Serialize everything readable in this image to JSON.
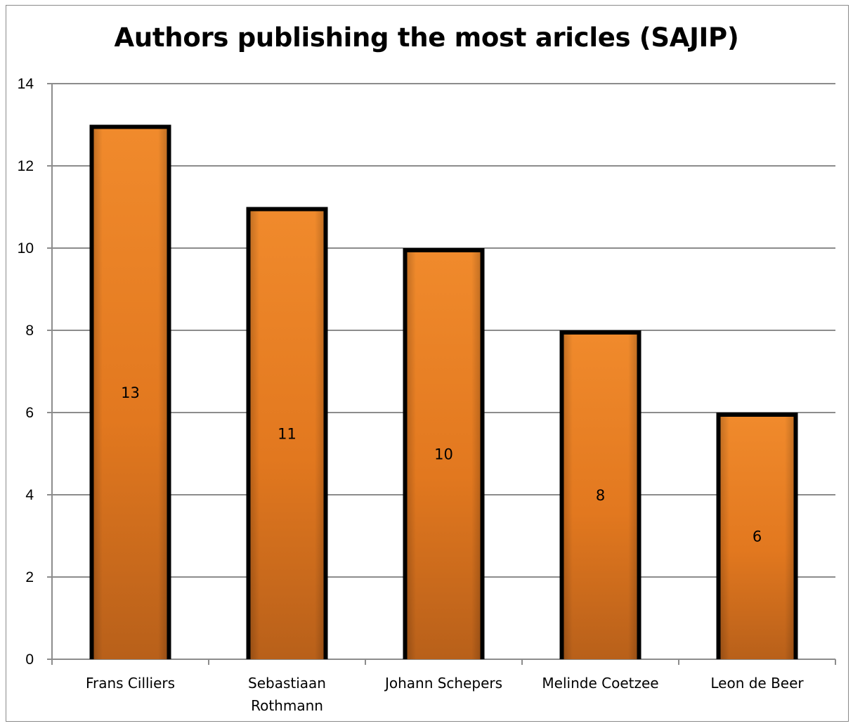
{
  "chart_data": {
    "type": "bar",
    "title": "Authors publishing the most aricles (SAJIP)",
    "categories": [
      [
        "Frans Cilliers"
      ],
      [
        "Sebastiaan",
        "Rothmann"
      ],
      [
        "Johann Schepers"
      ],
      [
        "Melinde Coetzee"
      ],
      [
        "Leon de Beer"
      ]
    ],
    "values": [
      13,
      11,
      10,
      8,
      6
    ],
    "data_labels": [
      "13",
      "11",
      "10",
      "8",
      "6"
    ],
    "ylim": [
      0,
      14
    ],
    "yticks": [
      "0",
      "2",
      "4",
      "6",
      "8",
      "10",
      "12",
      "14"
    ],
    "xlabel": "",
    "ylabel": "",
    "grid": true,
    "legend": "none",
    "colors": {
      "bar_fill": "#e07a22",
      "bar_outline": "#000000",
      "grid": "#8c8c8c"
    }
  }
}
